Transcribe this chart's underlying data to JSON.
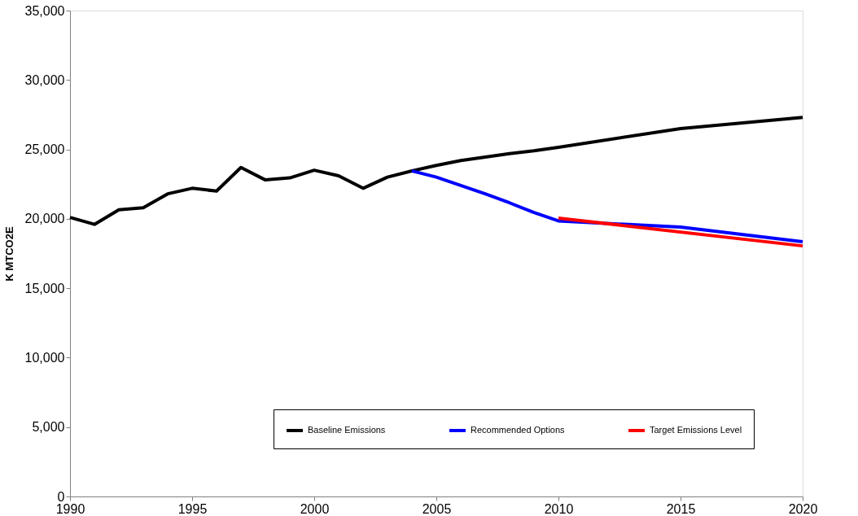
{
  "chart_data": {
    "type": "line",
    "ylabel": "K MTCO2E",
    "xlim": [
      1990,
      2020
    ],
    "xticks": [
      1990,
      1995,
      2000,
      2005,
      2010,
      2015,
      2020
    ],
    "ylim": [
      0,
      35000
    ],
    "yticks": [
      0,
      {
        "value": 5000,
        "label": "5,000"
      },
      {
        "value": 10000,
        "label": "10,000"
      },
      {
        "value": 15000,
        "label": "15,000"
      },
      {
        "value": 20000,
        "label": "20,000"
      },
      {
        "value": 25000,
        "label": "25,000"
      },
      {
        "value": 30000,
        "label": "30,000"
      },
      {
        "value": 35000,
        "label": "35,000"
      }
    ],
    "grid": false,
    "legend": "bottom",
    "line_style": "solid",
    "marker": "none",
    "series": [
      {
        "name": "Baseline Emissions",
        "color": "#000000",
        "x": [
          1990,
          1991,
          1992,
          1993,
          1994,
          1995,
          1996,
          1997,
          1998,
          1999,
          2000,
          2001,
          2002,
          2003,
          2004,
          2005,
          2006,
          2007,
          2008,
          2009,
          2010,
          2015,
          2020
        ],
        "values": [
          20100,
          19600,
          20650,
          20800,
          21800,
          22200,
          22000,
          23700,
          22800,
          22950,
          23500,
          23100,
          22200,
          23000,
          23450,
          23850,
          24200,
          24450,
          24700,
          24900,
          25150,
          26500,
          27300
        ]
      },
      {
        "name": "Recommended Options",
        "color": "#0000ff",
        "x": [
          2004,
          2005,
          2006,
          2007,
          2008,
          2009,
          2010,
          2015,
          2020
        ],
        "values": [
          23450,
          23000,
          22400,
          21800,
          21150,
          20450,
          19850,
          19400,
          18350
        ]
      },
      {
        "name": "Target Emissions Level",
        "color": "#ff0000",
        "x": [
          2010,
          2020
        ],
        "values": [
          20050,
          18050
        ]
      }
    ]
  }
}
